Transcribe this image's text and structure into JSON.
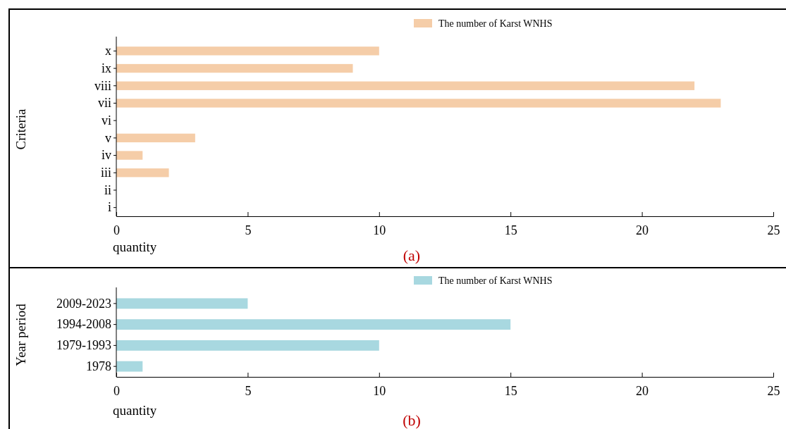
{
  "chart_data": [
    {
      "type": "bar",
      "orientation": "horizontal",
      "categories": [
        "x",
        "ix",
        "viii",
        "vii",
        "vi",
        "v",
        "iv",
        "iii",
        "ii",
        "i"
      ],
      "series": [
        {
          "name": "The number of Karst WNHS",
          "color": "#f5cda8",
          "values": [
            10,
            9,
            22,
            23,
            0,
            3,
            1,
            2,
            0,
            0
          ]
        }
      ],
      "xlim": [
        0,
        25
      ],
      "xticks": [
        0,
        5,
        10,
        15,
        20,
        25
      ],
      "xlabel": "quantity",
      "ylabel": "Criteria",
      "legend": "top",
      "grid": false,
      "annotations": [
        "(a)"
      ]
    },
    {
      "type": "bar",
      "orientation": "horizontal",
      "categories": [
        "2009-2023",
        "1994-2008",
        "1979-1993",
        "1978"
      ],
      "series": [
        {
          "name": "The number of Karst WNHS",
          "color": "#a8d8e0",
          "values": [
            5,
            15,
            10,
            1
          ]
        }
      ],
      "xlim": [
        0,
        25
      ],
      "xticks": [
        0,
        5,
        10,
        15,
        20,
        25
      ],
      "xlabel": "quantity",
      "ylabel": "Year period",
      "legend": "top",
      "grid": false,
      "annotations": [
        "(b)"
      ]
    }
  ]
}
